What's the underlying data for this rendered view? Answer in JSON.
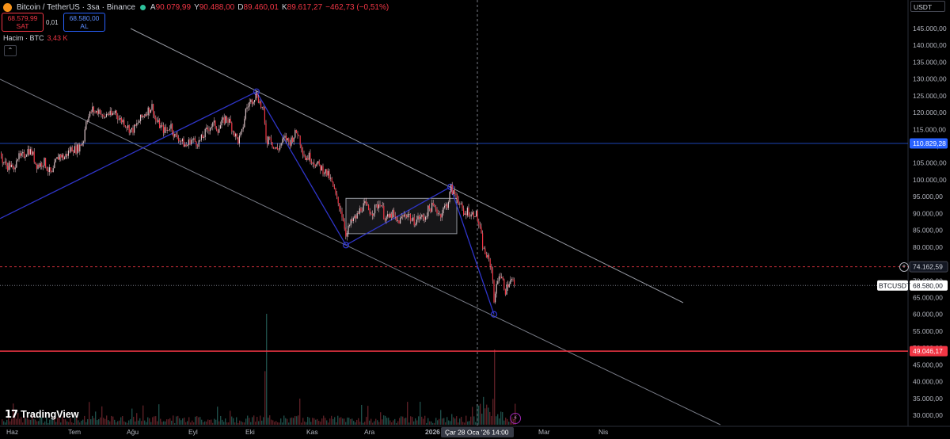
{
  "header": {
    "symbol": "Bitcoin / TetherUS · 3sa · Binance",
    "ohlc": [
      {
        "k": "A",
        "v": "90.079,99"
      },
      {
        "k": "Y",
        "v": "90.488,00"
      },
      {
        "k": "D",
        "v": "89.460,01"
      },
      {
        "k": "K",
        "v": "89.617,27"
      },
      {
        "k": "",
        "v": "−462,73 (−0,51%)"
      }
    ],
    "sell_price": "68.579,99",
    "sell_label": "SAT",
    "spread": "0,01",
    "buy_price": "68.580,00",
    "buy_label": "AL",
    "volume_label": "Hacim · BTC",
    "volume_value": "3,43 K",
    "currency": "USDT"
  },
  "logo_text": "TradingView",
  "colors": {
    "up": "#26a69a",
    "down": "#f23645",
    "accent_blue": "#2962ff",
    "pattern": "#2f35c9",
    "price_line": "#f23645"
  },
  "chart_data": {
    "type": "candlestick",
    "symbol": "BTCUSDT",
    "interval": "3sa",
    "y_ticks": [
      "145.000,00",
      "140.000,00",
      "135.000,00",
      "130.000,00",
      "125.000,00",
      "120.000,00",
      "115.000,00",
      "110.000,00",
      "105.000,00",
      "100.000,00",
      "95.000,00",
      "90.000,00",
      "85.000,00",
      "80.000,00",
      "75.000,00",
      "70.000,00",
      "65.000,00",
      "60.000,00",
      "55.000,00",
      "50.000,00",
      "45.000,00",
      "40.000,00",
      "35.000,00",
      "30.000,00"
    ],
    "y_tick_values": [
      145000,
      140000,
      135000,
      130000,
      125000,
      120000,
      115000,
      110000,
      105000,
      100000,
      95000,
      90000,
      85000,
      80000,
      75000,
      70000,
      65000,
      60000,
      55000,
      50000,
      45000,
      40000,
      35000,
      30000
    ],
    "x_ticks": [
      "Haz",
      "Tem",
      "Ağu",
      "Eyl",
      "Eki",
      "Kas",
      "Ara",
      "2026",
      "Mar",
      "Nis"
    ],
    "crosshair_date": "Çar 28 Oca '26",
    "crosshair_time": "14:00",
    "price_tags": [
      {
        "label": "110.829,28",
        "value": 110829.28,
        "style": "blue"
      },
      {
        "label": "74.162,59",
        "value": 74162.59,
        "style": "crosshair"
      },
      {
        "label": "68.580,00",
        "value": 68580,
        "style": "last",
        "prefix": "BTCUSDT"
      },
      {
        "label": "49.046,17",
        "value": 49046.17,
        "style": "red"
      }
    ],
    "last_price": 68580,
    "horizontal_level": 49046.17,
    "crosshair_price": 74162.59,
    "pattern_points": [
      {
        "date": "Haz",
        "price": 88500
      },
      {
        "date": "Eki",
        "price": 126200
      },
      {
        "date": "Kas",
        "price": 80600
      },
      {
        "date": "Oca",
        "price": 97900
      },
      {
        "date": "Şub",
        "price": 60000
      }
    ],
    "consolidation_box": {
      "from": "Kas",
      "to": "Oca",
      "high": 94500,
      "low": 84000
    },
    "series_path": [
      {
        "t": 0,
        "p": 108000
      },
      {
        "t": 2,
        "p": 106000
      },
      {
        "t": 5,
        "p": 105000
      },
      {
        "t": 8,
        "p": 104000
      },
      {
        "t": 12,
        "p": 104500
      },
      {
        "t": 17,
        "p": 102500
      },
      {
        "t": 20,
        "p": 107000
      },
      {
        "t": 25,
        "p": 106500
      },
      {
        "t": 30,
        "p": 107500
      },
      {
        "t": 35,
        "p": 109000
      },
      {
        "t": 40,
        "p": 108000
      },
      {
        "t": 45,
        "p": 104500
      },
      {
        "t": 50,
        "p": 104500
      },
      {
        "t": 55,
        "p": 105500
      },
      {
        "t": 60,
        "p": 103000
      },
      {
        "t": 65,
        "p": 101500
      },
      {
        "t": 70,
        "p": 105500
      },
      {
        "t": 75,
        "p": 107500
      },
      {
        "t": 80,
        "p": 106500
      },
      {
        "t": 85,
        "p": 108000
      },
      {
        "t": 90,
        "p": 109500
      },
      {
        "t": 95,
        "p": 109000
      },
      {
        "t": 100,
        "p": 110000
      },
      {
        "t": 105,
        "p": 112000
      },
      {
        "t": 108,
        "p": 118000
      },
      {
        "t": 112,
        "p": 119000
      },
      {
        "t": 116,
        "p": 121000
      },
      {
        "t": 120,
        "p": 120000
      },
      {
        "t": 125,
        "p": 121000
      },
      {
        "t": 130,
        "p": 118000
      },
      {
        "t": 135,
        "p": 120000
      },
      {
        "t": 140,
        "p": 119000
      },
      {
        "t": 145,
        "p": 120500
      },
      {
        "t": 150,
        "p": 118000
      },
      {
        "t": 155,
        "p": 117500
      },
      {
        "t": 160,
        "p": 116000
      },
      {
        "t": 165,
        "p": 114500
      },
      {
        "t": 170,
        "p": 115500
      },
      {
        "t": 175,
        "p": 117500
      },
      {
        "t": 180,
        "p": 119000
      },
      {
        "t": 185,
        "p": 120500
      },
      {
        "t": 188,
        "p": 121000
      },
      {
        "t": 192,
        "p": 122000
      },
      {
        "t": 195,
        "p": 118000
      },
      {
        "t": 200,
        "p": 116500
      },
      {
        "t": 205,
        "p": 115000
      },
      {
        "t": 210,
        "p": 114500
      },
      {
        "t": 215,
        "p": 116500
      },
      {
        "t": 220,
        "p": 113000
      },
      {
        "t": 225,
        "p": 112500
      },
      {
        "t": 230,
        "p": 111000
      },
      {
        "t": 235,
        "p": 110000
      },
      {
        "t": 240,
        "p": 112000
      },
      {
        "t": 245,
        "p": 111500
      },
      {
        "t": 250,
        "p": 111000
      },
      {
        "t": 255,
        "p": 112500
      },
      {
        "t": 260,
        "p": 114500
      },
      {
        "t": 265,
        "p": 116000
      },
      {
        "t": 270,
        "p": 116500
      },
      {
        "t": 275,
        "p": 115000
      },
      {
        "t": 280,
        "p": 117000
      },
      {
        "t": 285,
        "p": 118500
      },
      {
        "t": 290,
        "p": 117000
      },
      {
        "t": 295,
        "p": 114000
      },
      {
        "t": 300,
        "p": 111500
      },
      {
        "t": 305,
        "p": 114000
      },
      {
        "t": 310,
        "p": 121000
      },
      {
        "t": 315,
        "p": 123000
      },
      {
        "t": 320,
        "p": 124500
      },
      {
        "t": 324,
        "p": 125500
      },
      {
        "t": 328,
        "p": 122500
      },
      {
        "t": 332,
        "p": 120500
      },
      {
        "t": 336,
        "p": 111000
      },
      {
        "t": 340,
        "p": 113500
      },
      {
        "t": 345,
        "p": 109500
      },
      {
        "t": 350,
        "p": 109000
      },
      {
        "t": 355,
        "p": 111000
      },
      {
        "t": 360,
        "p": 112500
      },
      {
        "t": 365,
        "p": 111000
      },
      {
        "t": 370,
        "p": 113000
      },
      {
        "t": 375,
        "p": 114500
      },
      {
        "t": 380,
        "p": 110000
      },
      {
        "t": 385,
        "p": 106500
      },
      {
        "t": 390,
        "p": 107000
      },
      {
        "t": 395,
        "p": 105500
      },
      {
        "t": 400,
        "p": 104500
      },
      {
        "t": 405,
        "p": 103500
      },
      {
        "t": 410,
        "p": 102500
      },
      {
        "t": 415,
        "p": 101000
      },
      {
        "t": 420,
        "p": 98000
      },
      {
        "t": 425,
        "p": 94000
      },
      {
        "t": 430,
        "p": 91000
      },
      {
        "t": 434,
        "p": 87000
      },
      {
        "t": 437,
        "p": 83000
      },
      {
        "t": 440,
        "p": 86000
      },
      {
        "t": 445,
        "p": 88000
      },
      {
        "t": 450,
        "p": 89000
      },
      {
        "t": 455,
        "p": 91500
      },
      {
        "t": 460,
        "p": 92500
      },
      {
        "t": 465,
        "p": 91000
      },
      {
        "t": 470,
        "p": 90500
      },
      {
        "t": 475,
        "p": 92000
      },
      {
        "t": 480,
        "p": 93500
      },
      {
        "t": 485,
        "p": 89000
      },
      {
        "t": 490,
        "p": 88500
      },
      {
        "t": 495,
        "p": 90000
      },
      {
        "t": 500,
        "p": 87500
      },
      {
        "t": 505,
        "p": 88000
      },
      {
        "t": 510,
        "p": 89500
      },
      {
        "t": 515,
        "p": 90000
      },
      {
        "t": 520,
        "p": 87500
      },
      {
        "t": 525,
        "p": 88000
      },
      {
        "t": 530,
        "p": 89000
      },
      {
        "t": 535,
        "p": 88500
      },
      {
        "t": 540,
        "p": 91000
      },
      {
        "t": 545,
        "p": 92000
      },
      {
        "t": 550,
        "p": 91500
      },
      {
        "t": 555,
        "p": 89500
      },
      {
        "t": 560,
        "p": 91500
      },
      {
        "t": 565,
        "p": 93000
      },
      {
        "t": 569,
        "p": 97500
      },
      {
        "t": 572,
        "p": 96000
      },
      {
        "t": 576,
        "p": 95500
      },
      {
        "t": 580,
        "p": 93000
      },
      {
        "t": 585,
        "p": 89500
      },
      {
        "t": 590,
        "p": 91000
      },
      {
        "t": 595,
        "p": 89500
      },
      {
        "t": 600,
        "p": 90500
      },
      {
        "t": 604,
        "p": 87000
      },
      {
        "t": 607,
        "p": 83500
      },
      {
        "t": 610,
        "p": 79000
      },
      {
        "t": 613,
        "p": 78000
      },
      {
        "t": 616,
        "p": 76000
      },
      {
        "t": 619,
        "p": 75000
      },
      {
        "t": 622,
        "p": 70000
      },
      {
        "t": 624,
        "p": 62500
      },
      {
        "t": 627,
        "p": 70000
      },
      {
        "t": 630,
        "p": 72000
      },
      {
        "t": 634,
        "p": 70000
      },
      {
        "t": 638,
        "p": 67000
      },
      {
        "t": 642,
        "p": 69500
      },
      {
        "t": 646,
        "p": 70000
      },
      {
        "t": 650,
        "p": 68580
      }
    ]
  }
}
